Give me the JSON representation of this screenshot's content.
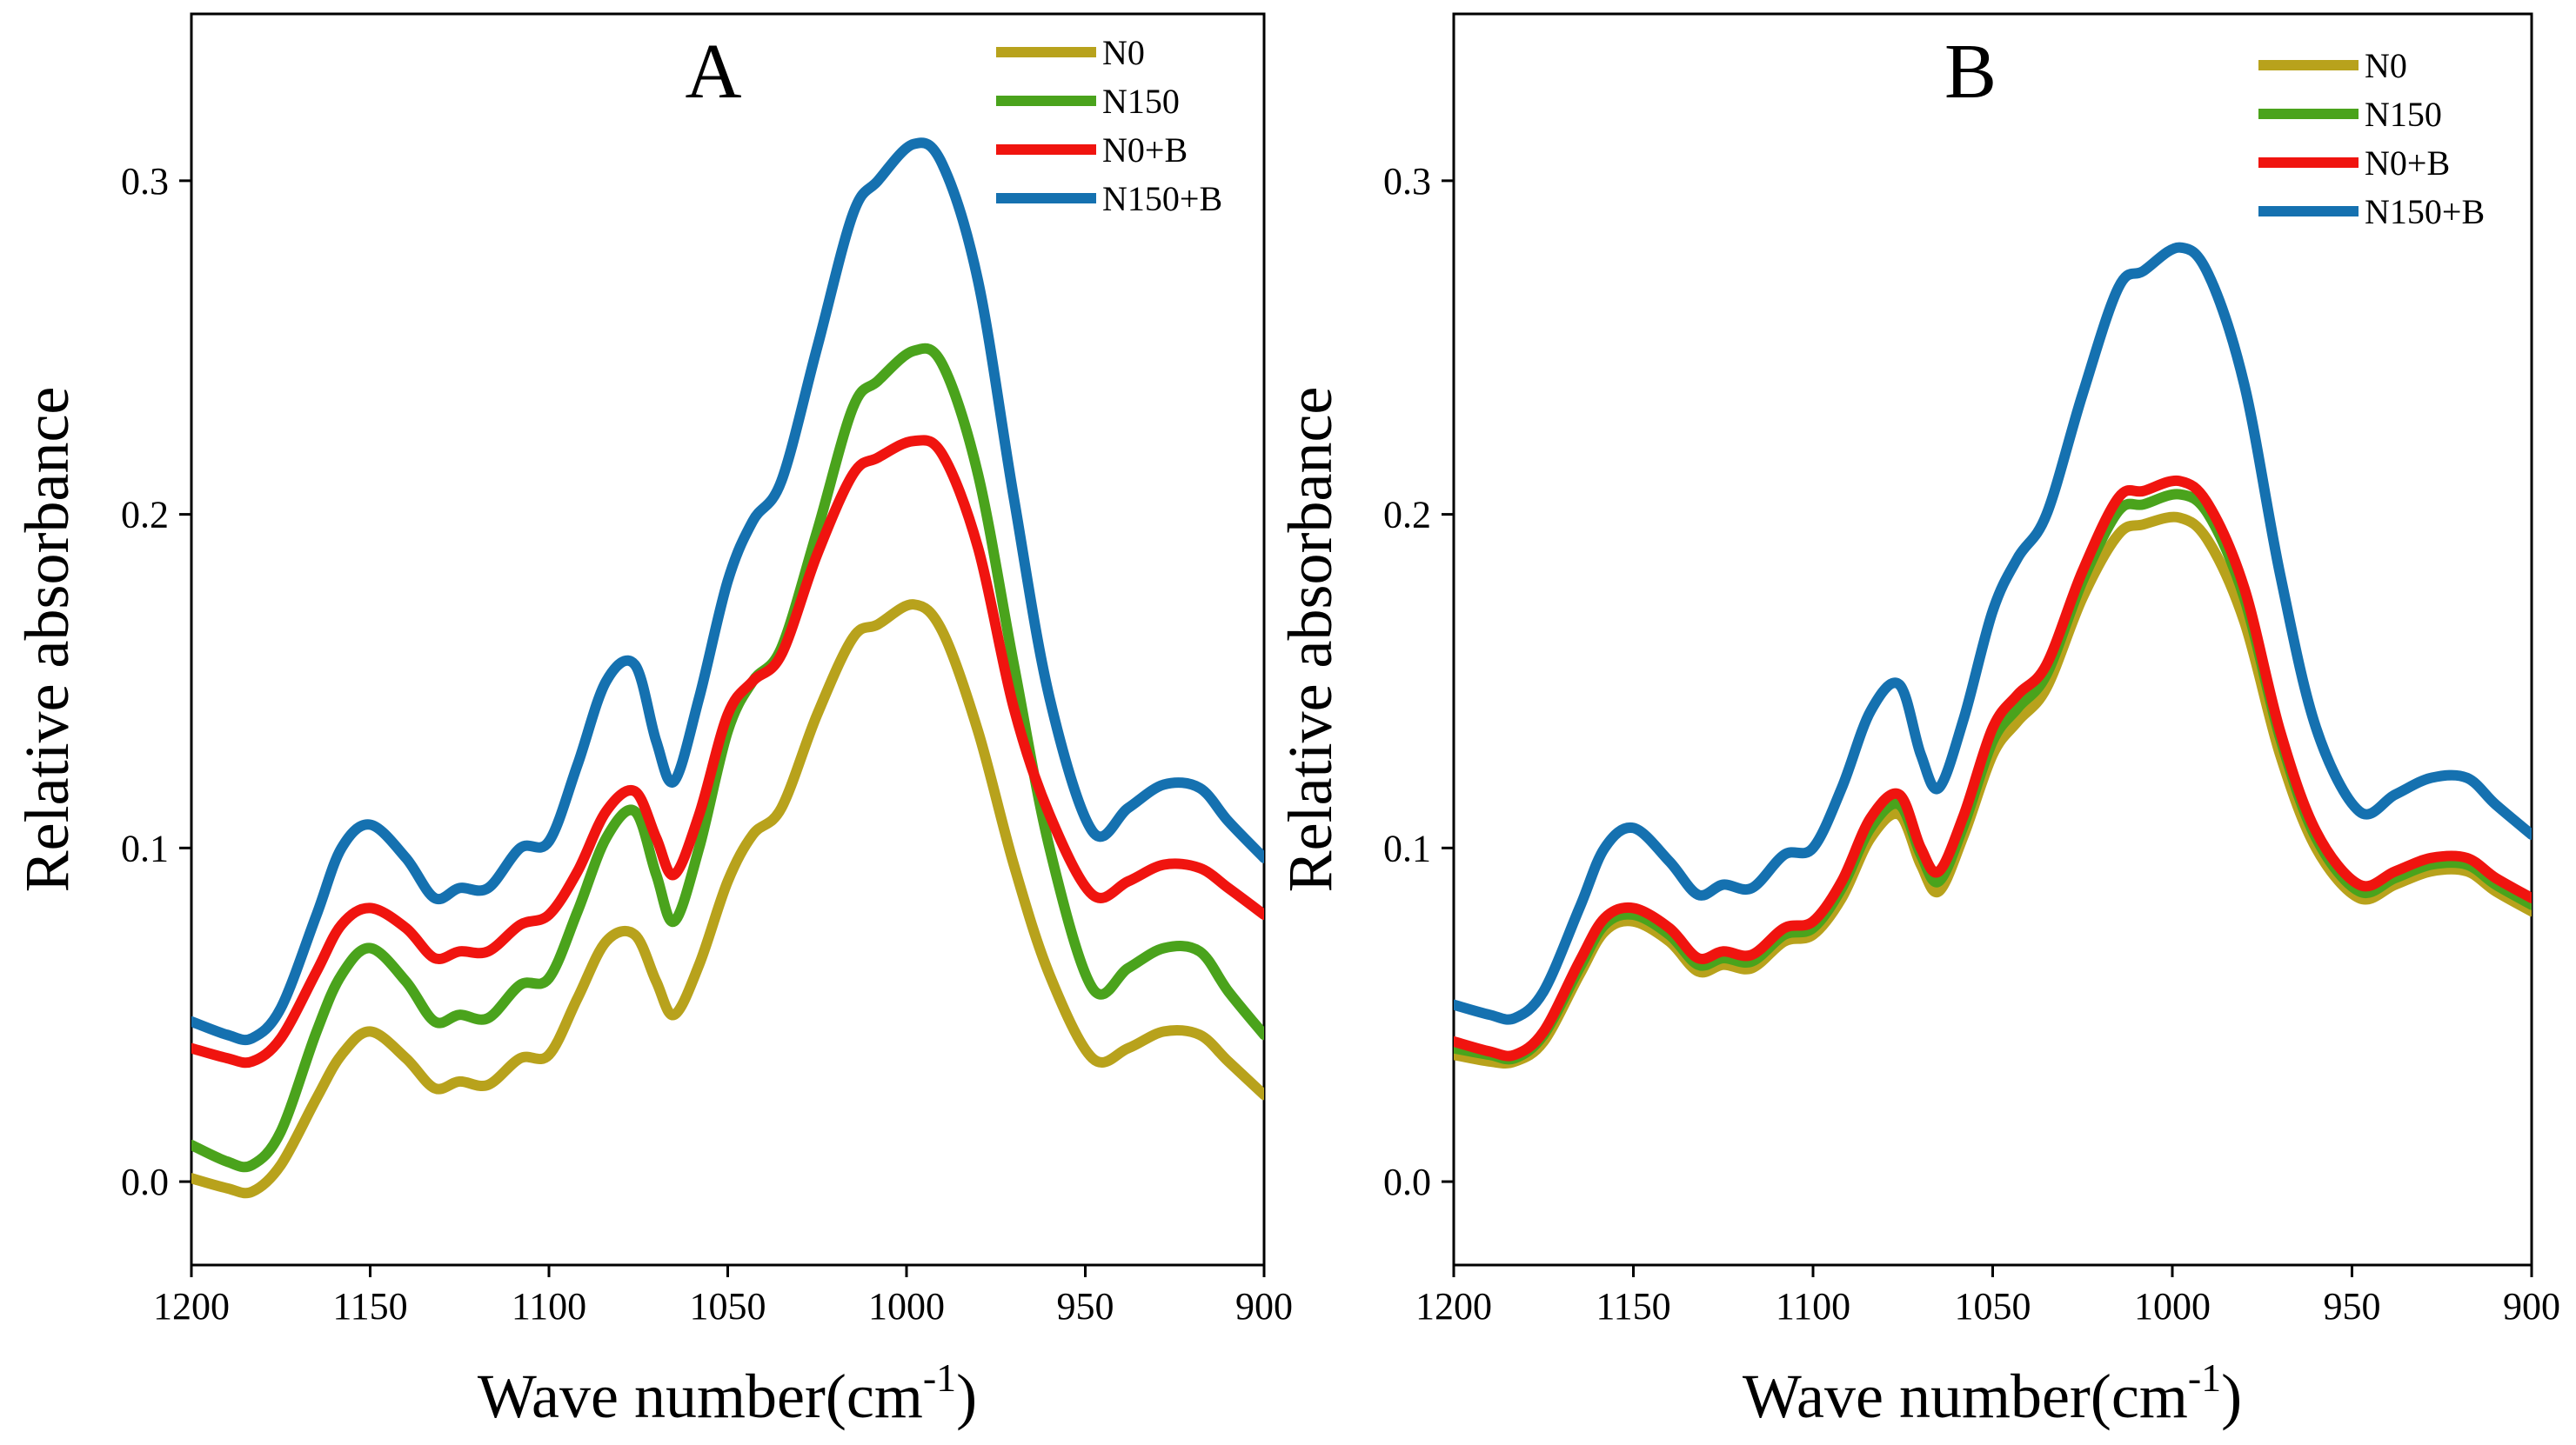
{
  "colors": {
    "N0": "#b8a21c",
    "N150": "#4aa31c",
    "N0+B": "#f0140f",
    "N150+B": "#1571b0"
  },
  "chart_data": [
    {
      "type": "line",
      "panel_label": "A",
      "xlabel_main": "Wave number(cm",
      "xlabel_sup": "-1",
      "xlabel_close": ")",
      "ylabel": "Relative absorbance",
      "xlim": [
        1200,
        900
      ],
      "ylim": [
        -0.025,
        0.35
      ],
      "x_ticks": [
        "1200",
        "1150",
        "1100",
        "1050",
        "1000",
        "950",
        "900"
      ],
      "y_ticks": [
        "0.0",
        "0.1",
        "0.2",
        "0.3"
      ],
      "legend_position": "top-right",
      "grid": false,
      "x": [
        1200,
        1190,
        1183,
        1175,
        1165,
        1158,
        1150,
        1140,
        1132,
        1125,
        1117,
        1108,
        1100,
        1092,
        1084,
        1076,
        1070,
        1065,
        1058,
        1050,
        1043,
        1035,
        1025,
        1015,
        1008,
        998,
        990,
        980,
        970,
        960,
        948,
        938,
        928,
        918,
        910,
        900
      ],
      "series": [
        {
          "name": "N0",
          "values": [
            0.001,
            -0.002,
            -0.003,
            0.005,
            0.025,
            0.038,
            0.045,
            0.037,
            0.028,
            0.03,
            0.029,
            0.037,
            0.038,
            0.055,
            0.072,
            0.074,
            0.06,
            0.05,
            0.065,
            0.09,
            0.104,
            0.112,
            0.14,
            0.163,
            0.167,
            0.173,
            0.165,
            0.135,
            0.095,
            0.062,
            0.037,
            0.04,
            0.045,
            0.044,
            0.036,
            0.026
          ]
        },
        {
          "name": "N150",
          "values": [
            0.011,
            0.006,
            0.005,
            0.015,
            0.045,
            0.062,
            0.07,
            0.06,
            0.048,
            0.05,
            0.049,
            0.059,
            0.061,
            0.081,
            0.103,
            0.111,
            0.092,
            0.078,
            0.1,
            0.135,
            0.15,
            0.16,
            0.195,
            0.232,
            0.24,
            0.249,
            0.245,
            0.212,
            0.155,
            0.1,
            0.058,
            0.064,
            0.07,
            0.069,
            0.057,
            0.044
          ]
        },
        {
          "name": "N0+B",
          "values": [
            0.04,
            0.037,
            0.036,
            0.043,
            0.063,
            0.077,
            0.082,
            0.076,
            0.067,
            0.069,
            0.069,
            0.077,
            0.08,
            0.093,
            0.111,
            0.117,
            0.103,
            0.092,
            0.11,
            0.14,
            0.15,
            0.158,
            0.188,
            0.212,
            0.217,
            0.222,
            0.218,
            0.19,
            0.142,
            0.11,
            0.086,
            0.09,
            0.095,
            0.094,
            0.088,
            0.08
          ]
        },
        {
          "name": "N150+B",
          "values": [
            0.048,
            0.044,
            0.043,
            0.052,
            0.08,
            0.1,
            0.107,
            0.097,
            0.085,
            0.088,
            0.088,
            0.1,
            0.102,
            0.125,
            0.15,
            0.155,
            0.132,
            0.12,
            0.145,
            0.18,
            0.198,
            0.21,
            0.25,
            0.29,
            0.3,
            0.311,
            0.305,
            0.27,
            0.205,
            0.145,
            0.105,
            0.112,
            0.119,
            0.118,
            0.108,
            0.097
          ]
        }
      ]
    },
    {
      "type": "line",
      "panel_label": "B",
      "xlabel_main": "Wave number(cm",
      "xlabel_sup": "-1",
      "xlabel_close": ")",
      "ylabel": "Relative absorbance",
      "xlim": [
        1200,
        900
      ],
      "ylim": [
        -0.025,
        0.35
      ],
      "x_ticks": [
        "1200",
        "1150",
        "1100",
        "1050",
        "1000",
        "950",
        "900"
      ],
      "y_ticks": [
        "0.0",
        "0.1",
        "0.2",
        "0.3"
      ],
      "legend_position": "top-right",
      "grid": false,
      "x": [
        1200,
        1190,
        1183,
        1175,
        1165,
        1158,
        1150,
        1140,
        1132,
        1125,
        1117,
        1108,
        1100,
        1092,
        1084,
        1076,
        1070,
        1065,
        1058,
        1050,
        1043,
        1035,
        1025,
        1015,
        1008,
        998,
        990,
        980,
        970,
        960,
        948,
        938,
        928,
        918,
        910,
        900
      ],
      "series": [
        {
          "name": "N0",
          "values": [
            0.038,
            0.036,
            0.036,
            0.042,
            0.062,
            0.075,
            0.078,
            0.072,
            0.063,
            0.065,
            0.064,
            0.072,
            0.074,
            0.085,
            0.103,
            0.11,
            0.095,
            0.087,
            0.104,
            0.128,
            0.138,
            0.148,
            0.175,
            0.194,
            0.197,
            0.199,
            0.192,
            0.168,
            0.128,
            0.1,
            0.085,
            0.089,
            0.093,
            0.093,
            0.087,
            0.081
          ]
        },
        {
          "name": "N150",
          "values": [
            0.04,
            0.038,
            0.037,
            0.044,
            0.064,
            0.077,
            0.08,
            0.074,
            0.065,
            0.067,
            0.066,
            0.074,
            0.076,
            0.088,
            0.106,
            0.113,
            0.098,
            0.09,
            0.107,
            0.132,
            0.142,
            0.152,
            0.18,
            0.201,
            0.203,
            0.206,
            0.2,
            0.175,
            0.133,
            0.103,
            0.087,
            0.091,
            0.095,
            0.095,
            0.089,
            0.083
          ]
        },
        {
          "name": "N0+B",
          "values": [
            0.042,
            0.039,
            0.038,
            0.045,
            0.066,
            0.079,
            0.082,
            0.076,
            0.067,
            0.069,
            0.068,
            0.076,
            0.078,
            0.09,
            0.109,
            0.116,
            0.1,
            0.093,
            0.11,
            0.136,
            0.146,
            0.155,
            0.183,
            0.205,
            0.207,
            0.21,
            0.203,
            0.178,
            0.135,
            0.105,
            0.089,
            0.093,
            0.097,
            0.097,
            0.091,
            0.085
          ]
        },
        {
          "name": "N150+B",
          "values": [
            0.053,
            0.05,
            0.049,
            0.057,
            0.082,
            0.1,
            0.106,
            0.096,
            0.086,
            0.089,
            0.088,
            0.098,
            0.1,
            0.118,
            0.141,
            0.149,
            0.128,
            0.118,
            0.139,
            0.171,
            0.187,
            0.2,
            0.236,
            0.268,
            0.273,
            0.28,
            0.272,
            0.239,
            0.182,
            0.136,
            0.111,
            0.116,
            0.121,
            0.121,
            0.113,
            0.104
          ]
        }
      ]
    }
  ]
}
